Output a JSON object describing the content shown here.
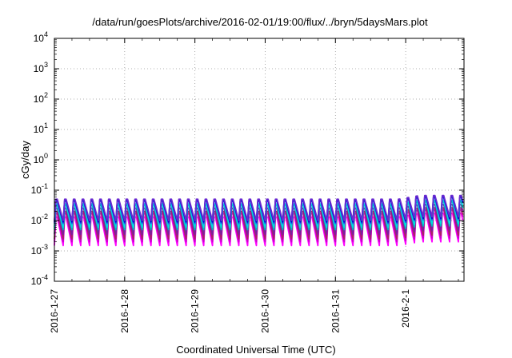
{
  "chart_data": {
    "type": "line",
    "title": "/data/run/goesPlots/archive/2016-02-01/19:00/flux/../bryn/5daysMars.plot",
    "xlabel": "Coordinated Universal Time (UTC)",
    "ylabel": "cGy/day",
    "yscale": "log",
    "ylim": [
      0.0001,
      10000
    ],
    "xlim": [
      "2016-01-27",
      "2016-02-01 20:00"
    ],
    "grid": true,
    "y_ticks": [
      {
        "value": 0.0001,
        "base": "10",
        "exp": "-4"
      },
      {
        "value": 0.001,
        "base": "10",
        "exp": "-3"
      },
      {
        "value": 0.01,
        "base": "10",
        "exp": "-2"
      },
      {
        "value": 0.1,
        "base": "10",
        "exp": "-1"
      },
      {
        "value": 1,
        "base": "10",
        "exp": "0"
      },
      {
        "value": 10,
        "base": "10",
        "exp": "1"
      },
      {
        "value": 100,
        "base": "10",
        "exp": "2"
      },
      {
        "value": 1000,
        "base": "10",
        "exp": "3"
      },
      {
        "value": 10000,
        "base": "10",
        "exp": "4"
      }
    ],
    "x_ticks": [
      {
        "value": 0,
        "label": "2016-1-27"
      },
      {
        "value": 1,
        "label": "2016-1-28"
      },
      {
        "value": 2,
        "label": "2016-1-29"
      },
      {
        "value": 3,
        "label": "2016-1-30"
      },
      {
        "value": 4,
        "label": "2016-1-31"
      },
      {
        "value": 5,
        "label": "2016-2-1"
      }
    ],
    "x_end": 5.83,
    "oscillation_period_days": 0.125,
    "series": [
      {
        "color": "#ff00ff",
        "peak": 0.02,
        "trough": 0.0015
      },
      {
        "color": "#cc00cc",
        "peak": 0.026,
        "trough": 0.002
      },
      {
        "color": "#aa2266",
        "peak": 0.03,
        "trough": 0.0025
      },
      {
        "color": "#7a1fa0",
        "peak": 0.038,
        "trough": 0.0035
      },
      {
        "color": "#00bbbb",
        "peak": 0.045,
        "trough": 0.005
      },
      {
        "color": "#00dddd",
        "peak": 0.05,
        "trough": 0.006
      },
      {
        "color": "#2255ee",
        "peak": 0.06,
        "trough": 0.008
      },
      {
        "color": "#0000cc",
        "peak": 0.065,
        "trough": 0.009
      },
      {
        "color": "#6a2bd0",
        "peak": 0.07,
        "trough": 0.01
      }
    ]
  }
}
